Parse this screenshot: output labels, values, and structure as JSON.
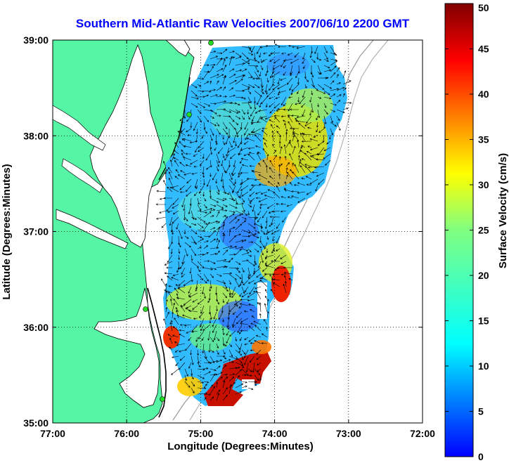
{
  "title": "Southern Mid-Atlantic Raw Velocities 2007/06/10 2200 GMT",
  "xlabel": "Longitude (Degrees:Minutes)",
  "ylabel": "Latitude (Degrees:Minutes)",
  "colorbar_label": "Surface Velocity (cm/s)",
  "x_ticks": [
    "77:00",
    "76:00",
    "75:00",
    "74:00",
    "73:00",
    "72:00"
  ],
  "y_ticks": [
    "39:00",
    "38:00",
    "37:00",
    "36:00",
    "35:00"
  ],
  "colorbar_ticks": [
    "50",
    "45",
    "40",
    "35",
    "30",
    "25",
    "20",
    "15",
    "10",
    "5",
    "0"
  ],
  "colors": {
    "land": "#55f5a5",
    "coast": "#000000",
    "grid": "#000000",
    "title": "#0000ff",
    "isobath": "#9a9a9a",
    "station": "#22dd22"
  },
  "chart_data": {
    "type": "heatmap",
    "title": "Southern Mid-Atlantic Raw Velocities 2007/06/10 2200 GMT",
    "xlabel": "Longitude (Degrees:Minutes)",
    "ylabel": "Latitude (Degrees:Minutes)",
    "xlim": [
      -77,
      -72
    ],
    "ylim": [
      35,
      39
    ],
    "x_tick_values": [
      -77,
      -76,
      -75,
      -74,
      -73,
      -72
    ],
    "y_tick_values": [
      39,
      38,
      37,
      36,
      35
    ],
    "color_range": [
      0,
      50
    ],
    "colorbar_label": "Surface Velocity (cm/s)",
    "grid": true,
    "colormap": "jet"
  }
}
